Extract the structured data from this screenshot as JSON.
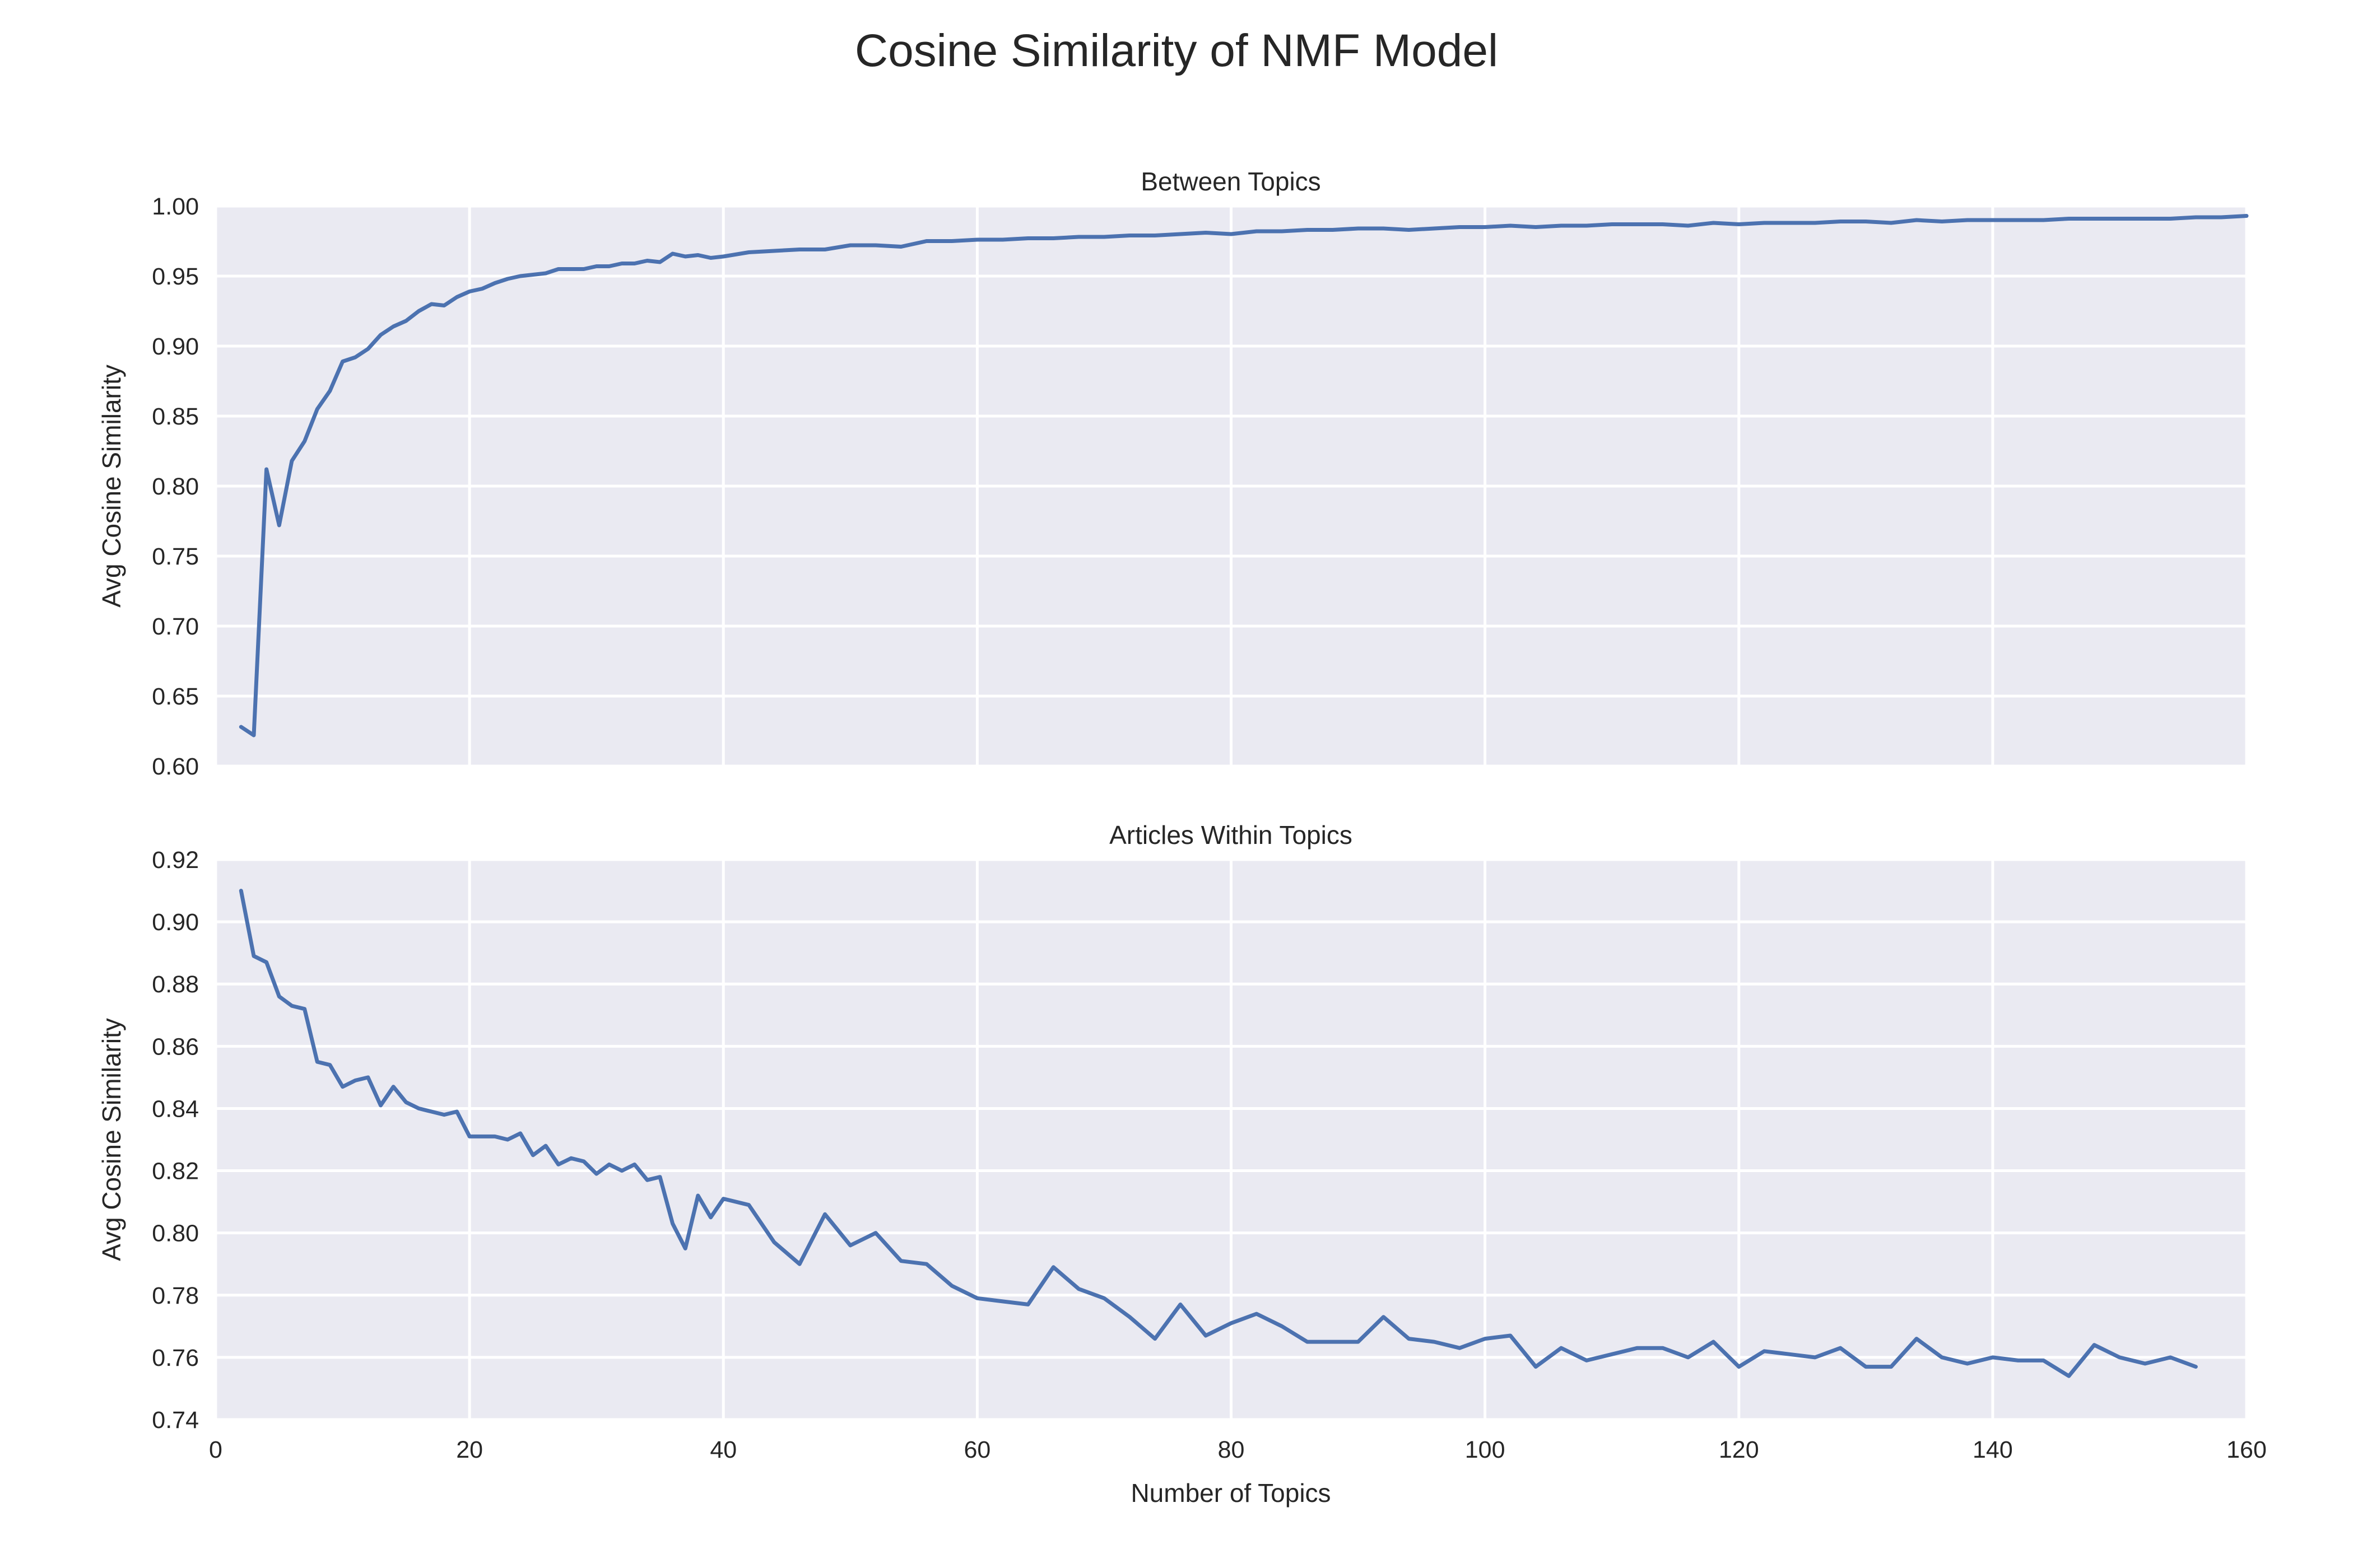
{
  "title": "Cosine Similarity of NMF Model",
  "colors": {
    "background": "#eaeaf2",
    "grid": "#ffffff",
    "line": "#4c72b0",
    "text": "#262626"
  },
  "chart_data": [
    {
      "type": "line",
      "title": "Between Topics",
      "xlabel": "",
      "ylabel": "Avg Cosine Similarity",
      "xlim": [
        0,
        160
      ],
      "ylim": [
        0.6,
        1.0
      ],
      "xticks": [
        0,
        20,
        40,
        60,
        80,
        100,
        120,
        140,
        160
      ],
      "xtick_labels_visible": false,
      "yticks": [
        0.6,
        0.65,
        0.7,
        0.75,
        0.8,
        0.85,
        0.9,
        0.95,
        1.0
      ],
      "ytick_labels": [
        "0.60",
        "0.65",
        "0.70",
        "0.75",
        "0.80",
        "0.85",
        "0.90",
        "0.95",
        "1.00"
      ],
      "grid": true,
      "series": [
        {
          "x": [
            2,
            3,
            4,
            5,
            6,
            7,
            8,
            9,
            10,
            11,
            12,
            13,
            14,
            15,
            16,
            17,
            18,
            19,
            20,
            21,
            22,
            23,
            24,
            25,
            26,
            27,
            28,
            29,
            30,
            31,
            32,
            33,
            34,
            35,
            36,
            37,
            38,
            39,
            40,
            42,
            44,
            46,
            48,
            50,
            52,
            54,
            56,
            58,
            60,
            62,
            64,
            66,
            68,
            70,
            72,
            74,
            76,
            78,
            80,
            82,
            84,
            86,
            88,
            90,
            92,
            94,
            96,
            98,
            100,
            102,
            104,
            106,
            108,
            110,
            112,
            114,
            116,
            118,
            120,
            122,
            124,
            126,
            128,
            130,
            132,
            134,
            136,
            138,
            140,
            142,
            144,
            146,
            148,
            150,
            152,
            154,
            156,
            158,
            160
          ],
          "y": [
            0.628,
            0.622,
            0.812,
            0.772,
            0.818,
            0.832,
            0.855,
            0.868,
            0.889,
            0.892,
            0.898,
            0.908,
            0.914,
            0.918,
            0.925,
            0.93,
            0.929,
            0.935,
            0.939,
            0.941,
            0.945,
            0.948,
            0.95,
            0.951,
            0.952,
            0.955,
            0.955,
            0.955,
            0.957,
            0.957,
            0.959,
            0.959,
            0.961,
            0.96,
            0.966,
            0.964,
            0.965,
            0.963,
            0.964,
            0.967,
            0.968,
            0.969,
            0.969,
            0.972,
            0.972,
            0.971,
            0.975,
            0.975,
            0.976,
            0.976,
            0.977,
            0.977,
            0.978,
            0.978,
            0.979,
            0.979,
            0.98,
            0.981,
            0.98,
            0.982,
            0.982,
            0.983,
            0.983,
            0.984,
            0.984,
            0.983,
            0.984,
            0.985,
            0.985,
            0.986,
            0.985,
            0.986,
            0.986,
            0.987,
            0.987,
            0.987,
            0.986,
            0.988,
            0.987,
            0.988,
            0.988,
            0.988,
            0.989,
            0.989,
            0.988,
            0.99,
            0.989,
            0.99,
            0.99,
            0.99,
            0.99,
            0.991,
            0.991,
            0.991,
            0.991,
            0.991,
            0.992,
            0.992,
            0.993
          ]
        }
      ]
    },
    {
      "type": "line",
      "title": "Articles Within Topics",
      "xlabel": "Number of Topics",
      "ylabel": "Avg Cosine Similarity",
      "xlim": [
        0,
        160
      ],
      "ylim": [
        0.74,
        0.92
      ],
      "xticks": [
        0,
        20,
        40,
        60,
        80,
        100,
        120,
        140,
        160
      ],
      "xtick_labels": [
        "0",
        "20",
        "40",
        "60",
        "80",
        "100",
        "120",
        "140",
        "160"
      ],
      "yticks": [
        0.74,
        0.76,
        0.78,
        0.8,
        0.82,
        0.84,
        0.86,
        0.88,
        0.9,
        0.92
      ],
      "ytick_labels": [
        "0.74",
        "0.76",
        "0.78",
        "0.80",
        "0.82",
        "0.84",
        "0.86",
        "0.88",
        "0.90",
        "0.92"
      ],
      "grid": true,
      "series": [
        {
          "x": [
            2,
            3,
            4,
            5,
            6,
            7,
            8,
            9,
            10,
            11,
            12,
            13,
            14,
            15,
            16,
            17,
            18,
            19,
            20,
            21,
            22,
            23,
            24,
            25,
            26,
            27,
            28,
            29,
            30,
            31,
            32,
            33,
            34,
            35,
            36,
            37,
            38,
            39,
            40,
            42,
            44,
            46,
            48,
            50,
            52,
            54,
            56,
            58,
            60,
            62,
            64,
            66,
            68,
            70,
            72,
            74,
            76,
            78,
            80,
            82,
            84,
            86,
            88,
            90,
            92,
            94,
            96,
            98,
            100,
            102,
            104,
            106,
            108,
            110,
            112,
            114,
            116,
            118,
            120,
            122,
            124,
            126,
            128,
            130,
            132,
            134,
            136,
            138,
            140,
            142,
            144,
            146,
            148,
            150,
            152,
            154,
            156
          ],
          "y": [
            0.91,
            0.889,
            0.887,
            0.876,
            0.873,
            0.872,
            0.855,
            0.854,
            0.847,
            0.849,
            0.85,
            0.841,
            0.847,
            0.842,
            0.84,
            0.839,
            0.838,
            0.839,
            0.831,
            0.831,
            0.831,
            0.83,
            0.832,
            0.825,
            0.828,
            0.822,
            0.824,
            0.823,
            0.819,
            0.822,
            0.82,
            0.822,
            0.817,
            0.818,
            0.803,
            0.795,
            0.812,
            0.805,
            0.811,
            0.809,
            0.797,
            0.79,
            0.806,
            0.796,
            0.8,
            0.791,
            0.79,
            0.783,
            0.779,
            0.778,
            0.777,
            0.789,
            0.782,
            0.779,
            0.773,
            0.766,
            0.777,
            0.767,
            0.771,
            0.774,
            0.77,
            0.765,
            0.765,
            0.765,
            0.773,
            0.766,
            0.765,
            0.763,
            0.766,
            0.767,
            0.757,
            0.763,
            0.759,
            0.761,
            0.763,
            0.763,
            0.76,
            0.765,
            0.757,
            0.762,
            0.761,
            0.76,
            0.763,
            0.757,
            0.757,
            0.766,
            0.76,
            0.758,
            0.76,
            0.759,
            0.759,
            0.754,
            0.764,
            0.76,
            0.758,
            0.76,
            0.757
          ]
        }
      ]
    }
  ]
}
